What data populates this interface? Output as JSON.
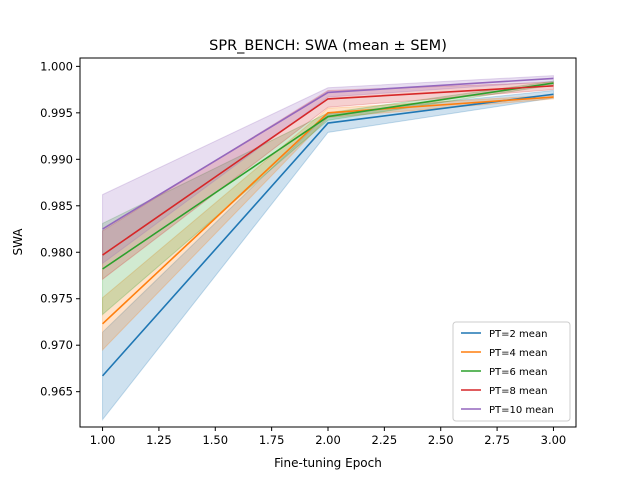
{
  "chart_data": {
    "type": "line",
    "title": "SPR_BENCH: SWA (mean ± SEM)",
    "xlabel": "Fine-tuning Epoch",
    "ylabel": "SWA",
    "x": [
      1,
      2,
      3
    ],
    "xlim": [
      0.9,
      3.1
    ],
    "ylim": [
      0.9612,
      1.0009
    ],
    "xticks": [
      1.0,
      1.25,
      1.5,
      1.75,
      2.0,
      2.25,
      2.5,
      2.75,
      3.0
    ],
    "xtick_labels": [
      "1.00",
      "1.25",
      "1.50",
      "1.75",
      "2.00",
      "2.25",
      "2.50",
      "2.75",
      "3.00"
    ],
    "yticks": [
      0.965,
      0.97,
      0.975,
      0.98,
      0.985,
      0.99,
      0.995,
      1.0
    ],
    "ytick_labels": [
      "0.965",
      "0.970",
      "0.975",
      "0.980",
      "0.985",
      "0.990",
      "0.995",
      "1.000"
    ],
    "grid": false,
    "legend_position": "lower-right",
    "series": [
      {
        "name": "PT=2 mean",
        "color": "#1f77b4",
        "mean": [
          0.9667,
          0.9939,
          0.997
        ],
        "lower": [
          0.962,
          0.9929,
          0.9966
        ],
        "upper": [
          0.9714,
          0.9949,
          0.9974
        ]
      },
      {
        "name": "PT=4 mean",
        "color": "#ff7f0e",
        "mean": [
          0.9723,
          0.995,
          0.9967
        ],
        "lower": [
          0.9695,
          0.9945,
          0.9965
        ],
        "upper": [
          0.9751,
          0.9955,
          0.9969
        ]
      },
      {
        "name": "PT=6 mean",
        "color": "#2ca02c",
        "mean": [
          0.9782,
          0.9946,
          0.9982
        ],
        "lower": [
          0.9733,
          0.9942,
          0.998
        ],
        "upper": [
          0.9831,
          0.995,
          0.9984
        ]
      },
      {
        "name": "PT=8 mean",
        "color": "#d62728",
        "mean": [
          0.9797,
          0.9965,
          0.9979
        ],
        "lower": [
          0.9771,
          0.9956,
          0.9975
        ],
        "upper": [
          0.9823,
          0.9974,
          0.9983
        ]
      },
      {
        "name": "PT=10 mean",
        "color": "#9467bd",
        "mean": [
          0.9825,
          0.9972,
          0.9987
        ],
        "lower": [
          0.9788,
          0.9967,
          0.9984
        ],
        "upper": [
          0.9862,
          0.9977,
          0.999
        ]
      }
    ]
  }
}
